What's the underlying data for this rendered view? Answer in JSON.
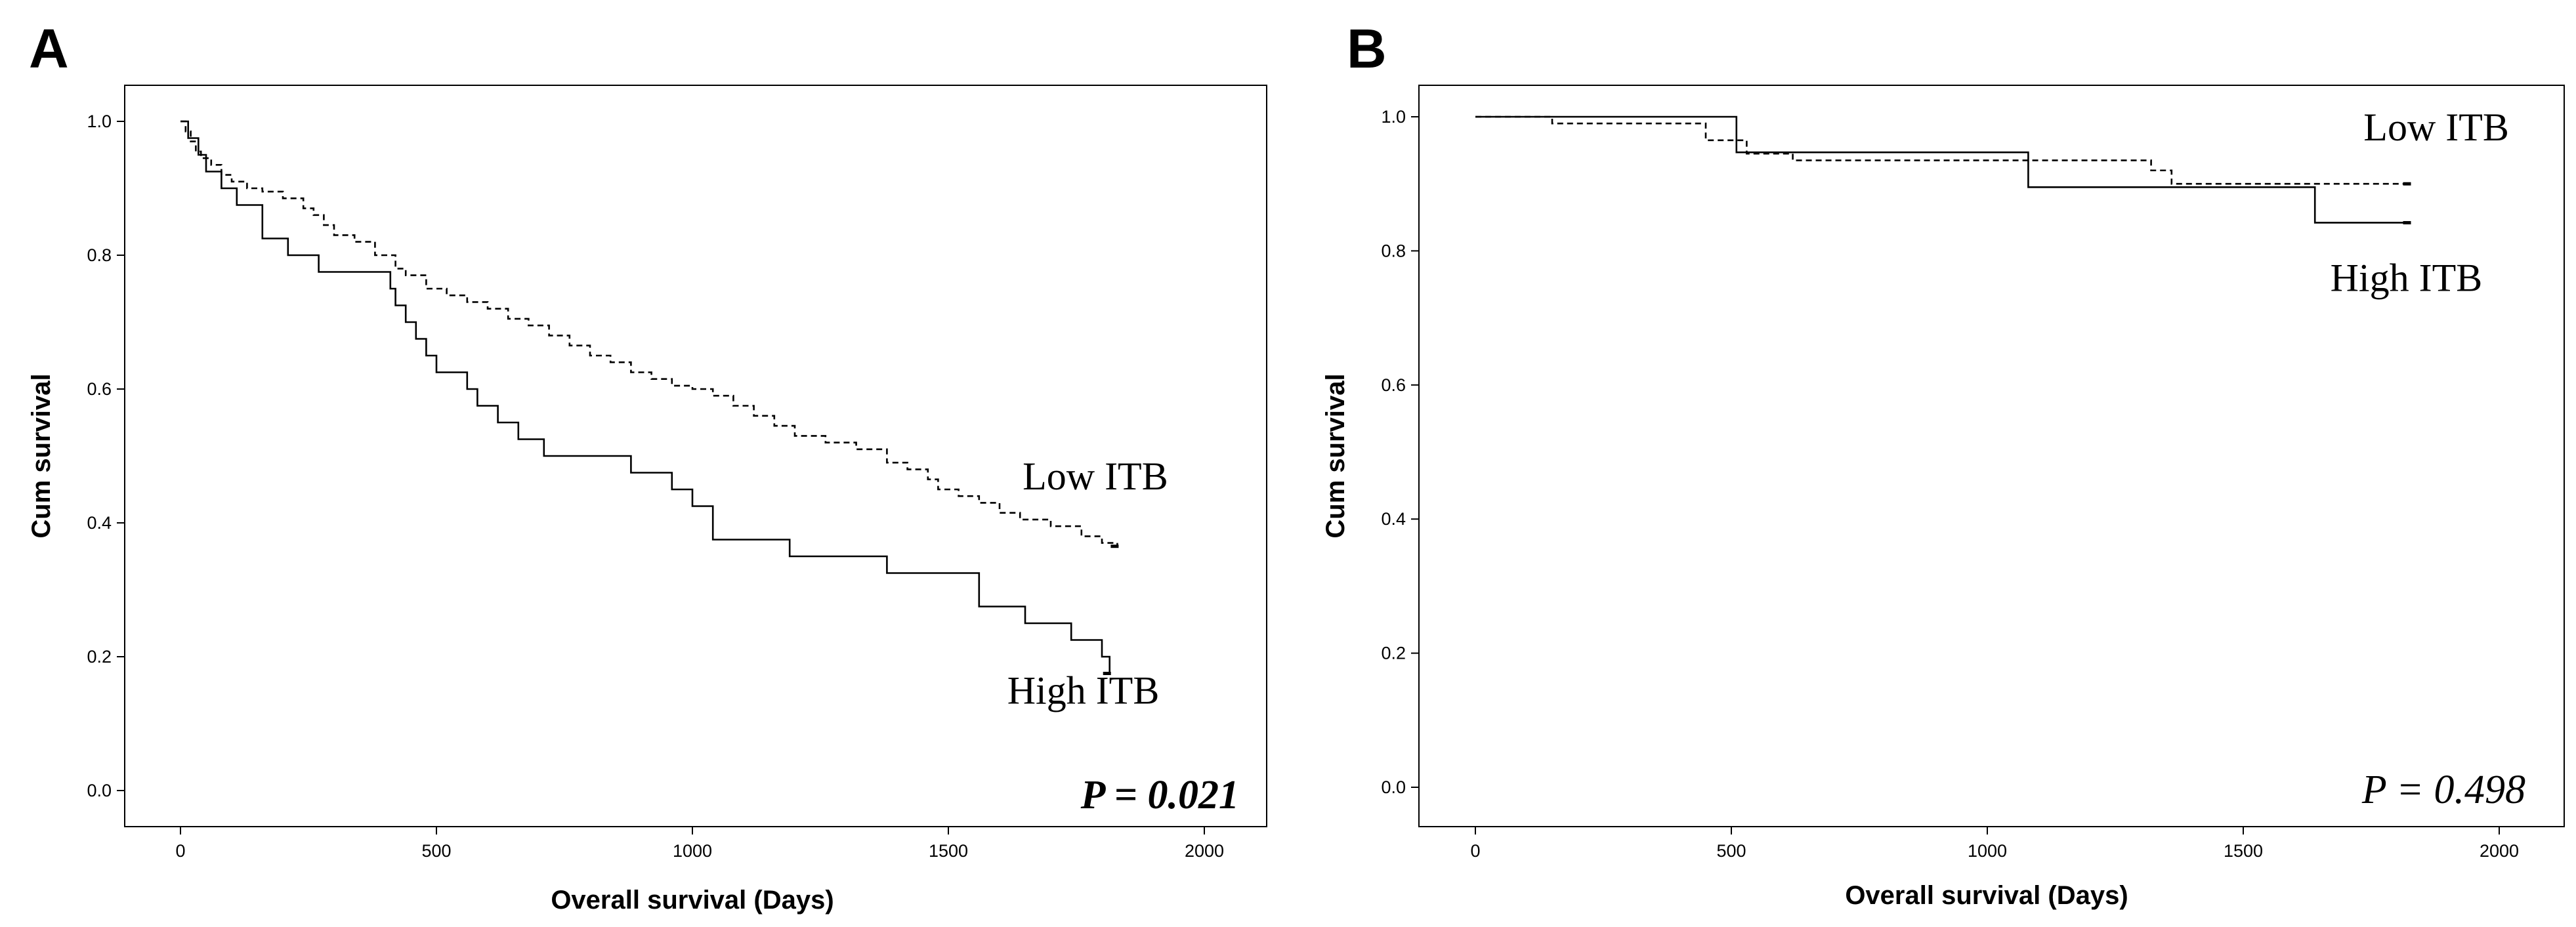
{
  "chart_data": [
    {
      "panel_label": "A",
      "type": "line",
      "subtype": "kaplan-meier",
      "xlabel": "Overall survival (Days)",
      "ylabel": "Cum survival",
      "xlim": [
        0,
        2000
      ],
      "ylim": [
        0,
        1
      ],
      "xticks": [
        "0",
        "500",
        "1000",
        "1500",
        "2000"
      ],
      "yticks": [
        "0.0",
        "0.2",
        "0.4",
        "0.6",
        "0.8",
        "1.0"
      ],
      "xtick_values": [
        0,
        500,
        1000,
        1500,
        2000
      ],
      "ytick_values": [
        0,
        0.2,
        0.4,
        0.6,
        0.8,
        1.0
      ],
      "p_value": "P  =  0.021",
      "p_value_bold": true,
      "grid": false,
      "series": [
        {
          "name": "Low  ITB",
          "style": "dashed",
          "censor_color": "#000000",
          "x": [
            0,
            10,
            20,
            30,
            40,
            60,
            80,
            100,
            130,
            160,
            200,
            240,
            260,
            280,
            300,
            340,
            380,
            420,
            440,
            480,
            520,
            560,
            600,
            640,
            680,
            720,
            760,
            800,
            840,
            880,
            920,
            960,
            1000,
            1040,
            1080,
            1120,
            1160,
            1200,
            1260,
            1320,
            1380,
            1420,
            1460,
            1480,
            1520,
            1560,
            1600,
            1640,
            1700,
            1760,
            1800,
            1830
          ],
          "y": [
            1.0,
            0.985,
            0.97,
            0.955,
            0.945,
            0.935,
            0.92,
            0.91,
            0.9,
            0.895,
            0.885,
            0.87,
            0.86,
            0.845,
            0.83,
            0.82,
            0.8,
            0.78,
            0.77,
            0.75,
            0.74,
            0.73,
            0.72,
            0.705,
            0.695,
            0.68,
            0.665,
            0.65,
            0.64,
            0.625,
            0.615,
            0.605,
            0.6,
            0.59,
            0.575,
            0.56,
            0.545,
            0.53,
            0.52,
            0.51,
            0.49,
            0.48,
            0.465,
            0.45,
            0.44,
            0.43,
            0.415,
            0.405,
            0.395,
            0.38,
            0.37,
            0.365
          ],
          "label_value_x": 1645,
          "label_value_y": 0.45
        },
        {
          "name": "High  ITB",
          "style": "solid",
          "censor_color": "#000000",
          "x": [
            0,
            15,
            35,
            50,
            80,
            110,
            160,
            210,
            270,
            410,
            420,
            440,
            460,
            480,
            500,
            560,
            580,
            620,
            660,
            710,
            880,
            960,
            1000,
            1040,
            1190,
            1380,
            1560,
            1650,
            1740,
            1800,
            1815
          ],
          "y": [
            1.0,
            0.975,
            0.95,
            0.925,
            0.9,
            0.875,
            0.825,
            0.8,
            0.775,
            0.75,
            0.725,
            0.7,
            0.675,
            0.65,
            0.625,
            0.6,
            0.575,
            0.55,
            0.525,
            0.5,
            0.475,
            0.45,
            0.425,
            0.375,
            0.35,
            0.325,
            0.275,
            0.25,
            0.225,
            0.2,
            0.175
          ],
          "label_value_x": 1615,
          "label_value_y": 0.13
        }
      ]
    },
    {
      "panel_label": "B",
      "type": "line",
      "subtype": "kaplan-meier",
      "xlabel": "Overall survival (Days)",
      "ylabel": "Cum survival",
      "xlim": [
        0,
        2000
      ],
      "ylim": [
        0,
        1
      ],
      "xticks": [
        "0",
        "500",
        "1000",
        "1500",
        "2000"
      ],
      "yticks": [
        "0.0",
        "0.2",
        "0.4",
        "0.6",
        "0.8",
        "1.0"
      ],
      "xtick_values": [
        0,
        500,
        1000,
        1500,
        2000
      ],
      "ytick_values": [
        0,
        0.2,
        0.4,
        0.6,
        0.8,
        1.0
      ],
      "p_value": "P  =  0.498",
      "p_value_bold": false,
      "grid": false,
      "series": [
        {
          "name": "Low  ITB",
          "style": "dashed",
          "censor_color": "#000000",
          "x": [
            0,
            150,
            450,
            530,
            620,
            1320,
            1360,
            1825
          ],
          "y": [
            1.0,
            0.99,
            0.965,
            0.945,
            0.935,
            0.92,
            0.9,
            0.9
          ],
          "label_value_x": 1735,
          "label_value_y": 0.965
        },
        {
          "name": "High  ITB",
          "style": "solid",
          "censor_color": "#4a6fd8",
          "x": [
            0,
            510,
            1080,
            1640,
            1825
          ],
          "y": [
            1.0,
            0.947,
            0.895,
            0.842,
            0.842
          ],
          "label_value_x": 1670,
          "label_value_y": 0.74
        }
      ]
    }
  ]
}
